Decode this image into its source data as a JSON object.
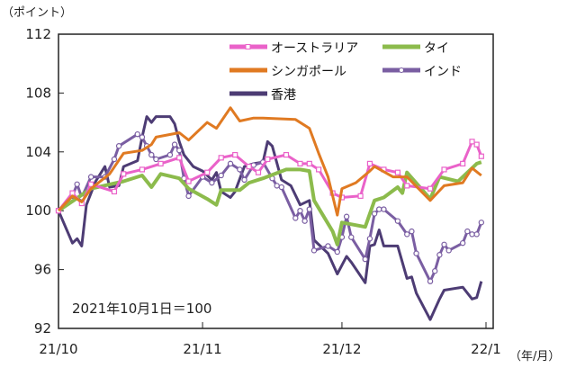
{
  "chart_data": {
    "type": "line",
    "title": "",
    "ylabel": "（ポイント）",
    "xlabel": "（年/月）",
    "annotation": "2021年10月1日＝100",
    "ylim": [
      92,
      112
    ],
    "yticks": [
      92,
      96,
      100,
      104,
      108,
      112
    ],
    "xlim": [
      "2021-10-01",
      "2022-01-01"
    ],
    "xticks": [
      {
        "date": "2021-10-01",
        "label": "21/10"
      },
      {
        "date": "2021-11-01",
        "label": "21/11"
      },
      {
        "date": "2021-12-01",
        "label": "21/12"
      },
      {
        "date": "2022-01-01",
        "label": "22/1"
      }
    ],
    "grid": false,
    "legend": "top-right",
    "series": [
      {
        "name": "オーストラリア",
        "color": "#ea62c9",
        "marker": "square",
        "points": [
          [
            "2021-10-01",
            100
          ],
          [
            "2021-10-04",
            101.2
          ],
          [
            "2021-10-06",
            100.5
          ],
          [
            "2021-10-08",
            101.8
          ],
          [
            "2021-10-13",
            101.3
          ],
          [
            "2021-10-15",
            102.5
          ],
          [
            "2021-10-19",
            102.8
          ],
          [
            "2021-10-23",
            103.2
          ],
          [
            "2021-10-27",
            103.6
          ],
          [
            "2021-10-29",
            102
          ],
          [
            "2021-11-02",
            102.6
          ],
          [
            "2021-11-05",
            103.6
          ],
          [
            "2021-11-08",
            103.8
          ],
          [
            "2021-11-11",
            103
          ],
          [
            "2021-11-13",
            102.6
          ],
          [
            "2021-11-15",
            103.5
          ],
          [
            "2021-11-19",
            103.8
          ],
          [
            "2021-11-22",
            103.2
          ],
          [
            "2021-11-24",
            103.2
          ],
          [
            "2021-11-26",
            102.8
          ],
          [
            "2021-11-29",
            101.2
          ],
          [
            "2021-12-01",
            100.9
          ],
          [
            "2021-12-05",
            101
          ],
          [
            "2021-12-07",
            103.2
          ],
          [
            "2021-12-10",
            102.8
          ],
          [
            "2021-12-13",
            102.6
          ],
          [
            "2021-12-15",
            101.7
          ],
          [
            "2021-12-20",
            101.5
          ],
          [
            "2021-12-23",
            102.8
          ],
          [
            "2021-12-27",
            103.2
          ],
          [
            "2021-12-29",
            104.7
          ],
          [
            "2021-12-30",
            104.5
          ],
          [
            "2021-12-31",
            103.7
          ]
        ]
      },
      {
        "name": "タイ",
        "color": "#8cbb4c",
        "marker": "none",
        "points": [
          [
            "2021-10-01",
            100
          ],
          [
            "2021-10-08",
            101.5
          ],
          [
            "2021-10-15",
            102
          ],
          [
            "2021-10-19",
            102.4
          ],
          [
            "2021-10-21",
            101.6
          ],
          [
            "2021-10-23",
            102.5
          ],
          [
            "2021-10-27",
            102.2
          ],
          [
            "2021-10-29",
            101.5
          ],
          [
            "2021-11-02",
            100.8
          ],
          [
            "2021-11-04",
            100.4
          ],
          [
            "2021-11-05",
            101.4
          ],
          [
            "2021-11-09",
            101.4
          ],
          [
            "2021-11-11",
            101.9
          ],
          [
            "2021-11-14",
            102.2
          ],
          [
            "2021-11-19",
            102.8
          ],
          [
            "2021-11-22",
            102.8
          ],
          [
            "2021-11-24",
            102.7
          ],
          [
            "2021-11-25",
            100.7
          ],
          [
            "2021-11-29",
            98.6
          ],
          [
            "2021-11-30",
            97.7
          ],
          [
            "2021-12-01",
            99.2
          ],
          [
            "2021-12-06",
            98.9
          ],
          [
            "2021-12-08",
            100.7
          ],
          [
            "2021-12-10",
            100.9
          ],
          [
            "2021-12-13",
            101.6
          ],
          [
            "2021-12-14",
            101.2
          ],
          [
            "2021-12-15",
            102.6
          ],
          [
            "2021-12-20",
            100.8
          ],
          [
            "2021-12-22",
            102.3
          ],
          [
            "2021-12-26",
            102
          ],
          [
            "2021-12-30",
            103.2
          ],
          [
            "2021-12-31",
            103.3
          ]
        ]
      },
      {
        "name": "シンガポール",
        "color": "#e07a22",
        "marker": "none",
        "points": [
          [
            "2021-10-01",
            100
          ],
          [
            "2021-10-04",
            101
          ],
          [
            "2021-10-06",
            100.6
          ],
          [
            "2021-10-08",
            101.5
          ],
          [
            "2021-10-12",
            102.5
          ],
          [
            "2021-10-15",
            103.9
          ],
          [
            "2021-10-19",
            104.1
          ],
          [
            "2021-10-21",
            104.5
          ],
          [
            "2021-10-22",
            105
          ],
          [
            "2021-10-27",
            105.3
          ],
          [
            "2021-10-29",
            104.8
          ],
          [
            "2021-11-02",
            106
          ],
          [
            "2021-11-04",
            105.6
          ],
          [
            "2021-11-07",
            107
          ],
          [
            "2021-11-09",
            106.1
          ],
          [
            "2021-11-12",
            106.3
          ],
          [
            "2021-11-14",
            106.3
          ],
          [
            "2021-11-21",
            106.2
          ],
          [
            "2021-11-24",
            105.6
          ],
          [
            "2021-11-26",
            103.9
          ],
          [
            "2021-11-28",
            102.3
          ],
          [
            "2021-11-30",
            99.7
          ],
          [
            "2021-12-01",
            101.5
          ],
          [
            "2021-12-04",
            101.9
          ],
          [
            "2021-12-07",
            102.7
          ],
          [
            "2021-12-08",
            103
          ],
          [
            "2021-12-12",
            102.3
          ],
          [
            "2021-12-15",
            102.3
          ],
          [
            "2021-12-20",
            100.7
          ],
          [
            "2021-12-23",
            101.7
          ],
          [
            "2021-12-27",
            101.9
          ],
          [
            "2021-12-29",
            102.9
          ],
          [
            "2021-12-31",
            102.4
          ]
        ]
      },
      {
        "name": "インド",
        "color": "#7a5ea2",
        "marker": "circle",
        "points": [
          [
            "2021-10-01",
            100
          ],
          [
            "2021-10-04",
            101
          ],
          [
            "2021-10-05",
            101.8
          ],
          [
            "2021-10-06",
            100.9
          ],
          [
            "2021-10-08",
            102.3
          ],
          [
            "2021-10-11",
            102.3
          ],
          [
            "2021-10-13",
            103.5
          ],
          [
            "2021-10-14",
            104.4
          ],
          [
            "2021-10-18",
            105.2
          ],
          [
            "2021-10-19",
            105
          ],
          [
            "2021-10-20",
            104.4
          ],
          [
            "2021-10-21",
            103.8
          ],
          [
            "2021-10-22",
            103.5
          ],
          [
            "2021-10-25",
            103.8
          ],
          [
            "2021-10-26",
            104.5
          ],
          [
            "2021-10-27",
            104.1
          ],
          [
            "2021-10-28",
            102.2
          ],
          [
            "2021-10-29",
            101
          ],
          [
            "2021-11-01",
            102.3
          ],
          [
            "2021-11-03",
            101.9
          ],
          [
            "2021-11-05",
            102.4
          ],
          [
            "2021-11-07",
            103.2
          ],
          [
            "2021-11-09",
            102.8
          ],
          [
            "2021-11-10",
            102.1
          ],
          [
            "2021-11-12",
            103.1
          ],
          [
            "2021-11-14",
            103.3
          ],
          [
            "2021-11-16",
            102.2
          ],
          [
            "2021-11-17",
            101.7
          ],
          [
            "2021-11-18",
            101.6
          ],
          [
            "2021-11-21",
            99.5
          ],
          [
            "2021-11-22",
            100
          ],
          [
            "2021-11-23",
            99.3
          ],
          [
            "2021-11-24",
            100.1
          ],
          [
            "2021-11-25",
            97.3
          ],
          [
            "2021-11-28",
            97.6
          ],
          [
            "2021-11-30",
            97.2
          ],
          [
            "2021-12-01",
            98.2
          ],
          [
            "2021-12-02",
            99.6
          ],
          [
            "2021-12-03",
            98.2
          ],
          [
            "2021-12-06",
            96.7
          ],
          [
            "2021-12-07",
            98.1
          ],
          [
            "2021-12-08",
            99.8
          ],
          [
            "2021-12-09",
            100.1
          ],
          [
            "2021-12-10",
            100.1
          ],
          [
            "2021-12-13",
            99.3
          ],
          [
            "2021-12-15",
            98.4
          ],
          [
            "2021-12-16",
            98.6
          ],
          [
            "2021-12-17",
            97.1
          ],
          [
            "2021-12-20",
            95.2
          ],
          [
            "2021-12-21",
            95.9
          ],
          [
            "2021-12-22",
            97
          ],
          [
            "2021-12-23",
            97.7
          ],
          [
            "2021-12-24",
            97.3
          ],
          [
            "2021-12-27",
            97.8
          ],
          [
            "2021-12-28",
            98.6
          ],
          [
            "2021-12-29",
            98.4
          ],
          [
            "2021-12-30",
            98.4
          ],
          [
            "2021-12-31",
            99.2
          ]
        ]
      },
      {
        "name": "香港",
        "color": "#4d3c74",
        "marker": "none",
        "points": [
          [
            "2021-10-01",
            100
          ],
          [
            "2021-10-04",
            97.8
          ],
          [
            "2021-10-05",
            98.1
          ],
          [
            "2021-10-06",
            97.6
          ],
          [
            "2021-10-07",
            100.4
          ],
          [
            "2021-10-09",
            102
          ],
          [
            "2021-10-11",
            103
          ],
          [
            "2021-10-12",
            101.6
          ],
          [
            "2021-10-14",
            101.7
          ],
          [
            "2021-10-15",
            103
          ],
          [
            "2021-10-18",
            103.4
          ],
          [
            "2021-10-19",
            105
          ],
          [
            "2021-10-20",
            106.4
          ],
          [
            "2021-10-21",
            106
          ],
          [
            "2021-10-22",
            106.4
          ],
          [
            "2021-10-25",
            106.4
          ],
          [
            "2021-10-26",
            105.9
          ],
          [
            "2021-10-27",
            104.7
          ],
          [
            "2021-10-28",
            103.8
          ],
          [
            "2021-10-30",
            103
          ],
          [
            "2021-11-01",
            102.7
          ],
          [
            "2021-11-03",
            102.1
          ],
          [
            "2021-11-04",
            102.6
          ],
          [
            "2021-11-05",
            101.3
          ],
          [
            "2021-11-07",
            100.9
          ],
          [
            "2021-11-08",
            101.3
          ],
          [
            "2021-11-10",
            103
          ],
          [
            "2021-11-12",
            103.2
          ],
          [
            "2021-11-14",
            103.3
          ],
          [
            "2021-11-15",
            104.7
          ],
          [
            "2021-11-16",
            104.4
          ],
          [
            "2021-11-18",
            102.1
          ],
          [
            "2021-11-20",
            101.7
          ],
          [
            "2021-11-22",
            100.4
          ],
          [
            "2021-11-24",
            100.7
          ],
          [
            "2021-11-25",
            98
          ],
          [
            "2021-11-28",
            97.1
          ],
          [
            "2021-11-30",
            95.7
          ],
          [
            "2021-12-02",
            96.9
          ],
          [
            "2021-12-03",
            96.5
          ],
          [
            "2021-12-06",
            95.1
          ],
          [
            "2021-12-07",
            97.6
          ],
          [
            "2021-12-08",
            97.7
          ],
          [
            "2021-12-09",
            98.7
          ],
          [
            "2021-12-10",
            97.6
          ],
          [
            "2021-12-13",
            97.6
          ],
          [
            "2021-12-15",
            95.4
          ],
          [
            "2021-12-16",
            95.5
          ],
          [
            "2021-12-17",
            94.4
          ],
          [
            "2021-12-20",
            92.6
          ],
          [
            "2021-12-22",
            94
          ],
          [
            "2021-12-23",
            94.6
          ],
          [
            "2021-12-27",
            94.8
          ],
          [
            "2021-12-29",
            94
          ],
          [
            "2021-12-30",
            94.1
          ],
          [
            "2021-12-31",
            95.2
          ]
        ]
      }
    ]
  }
}
